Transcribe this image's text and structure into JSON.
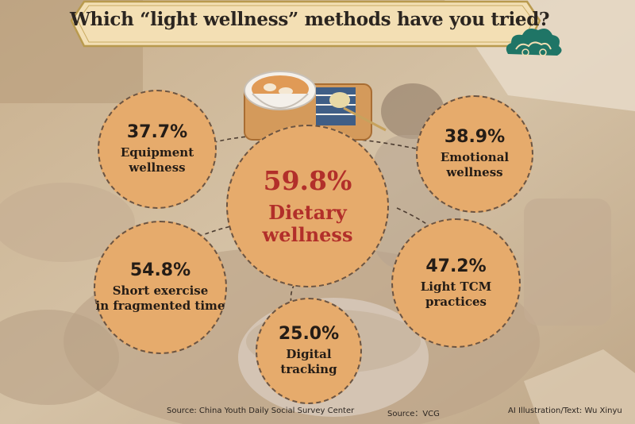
{
  "title": "Which “light wellness” methods have you tried?",
  "colors": {
    "bubble": "#e6ab6c",
    "accent_text": "#b22f2a",
    "banner": "#f3dfb4",
    "banner_border": "#b99a4e",
    "cloud": "#1f7566"
  },
  "bubbles": {
    "dietary": {
      "pct": "59.8%",
      "line1": "Dietary",
      "line2": "wellness"
    },
    "equipment": {
      "pct": "37.7%",
      "line1": "Equipment",
      "line2": "wellness"
    },
    "emotional": {
      "pct": "38.9%",
      "line1": "Emotional",
      "line2": "wellness"
    },
    "short_exercise": {
      "pct": "54.8%",
      "line1": "Short exercise",
      "line2": "in fragmented time"
    },
    "tcm": {
      "pct": "47.2%",
      "line1": "Light TCM",
      "line2": "practices"
    },
    "digital": {
      "pct": "25.0%",
      "line1": "Digital",
      "line2": "tracking"
    }
  },
  "footer": {
    "source": "Source: China Youth Daily Social Survey Center",
    "image_source": "Source：VCG",
    "credit": "AI Illustration/Text: Wu Xinyu"
  }
}
